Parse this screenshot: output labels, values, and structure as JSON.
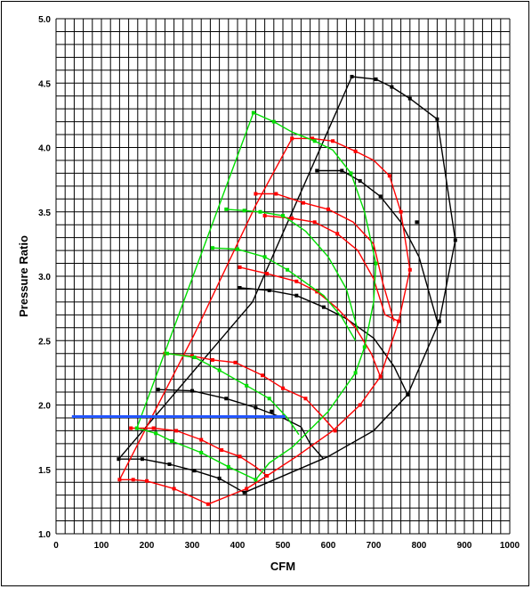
{
  "chart_data": {
    "type": "line",
    "title": "",
    "xlabel": "CFM",
    "ylabel": "Pressure Ratio",
    "xlim": [
      0,
      1000
    ],
    "ylim": [
      1.0,
      5.0
    ],
    "x_ticks": [
      0,
      100,
      200,
      300,
      400,
      500,
      600,
      700,
      800,
      900,
      1000
    ],
    "y_ticks": [
      "1.0",
      "1.5",
      "2.0",
      "2.5",
      "3.0",
      "3.5",
      "4.0",
      "4.5",
      "5.0"
    ],
    "x_minor_step": 20,
    "y_minor_step": 0.1,
    "grid": true,
    "legend": "none",
    "series": [
      {
        "color": "#000000",
        "polylines": [
          [
            [
              138,
              1.58
            ],
            [
              433,
              2.8
            ],
            [
              652,
              4.55
            ],
            [
              705,
              4.53
            ],
            [
              740,
              4.47
            ],
            [
              780,
              4.38
            ],
            [
              840,
              4.22
            ],
            [
              880,
              3.28
            ],
            [
              845,
              2.65
            ],
            [
              775,
              2.08
            ],
            [
              700,
              1.8
            ],
            [
              600,
              1.6
            ],
            [
              415,
              1.32
            ]
          ],
          [
            [
              138,
              1.58
            ],
            [
              190,
              1.58
            ],
            [
              250,
              1.54
            ],
            [
              305,
              1.49
            ],
            [
              360,
              1.43
            ],
            [
              415,
              1.32
            ]
          ],
          [
            [
              225,
              2.12
            ],
            [
              300,
              2.11
            ],
            [
              375,
              2.05
            ],
            [
              440,
              1.98
            ],
            [
              500,
              1.9
            ],
            [
              540,
              1.83
            ],
            [
              560,
              1.7
            ],
            [
              590,
              1.58
            ]
          ],
          [
            [
              405,
              2.91
            ],
            [
              470,
              2.89
            ],
            [
              530,
              2.85
            ],
            [
              590,
              2.76
            ],
            [
              640,
              2.67
            ],
            [
              700,
              2.52
            ],
            [
              745,
              2.3
            ],
            [
              775,
              2.08
            ]
          ],
          [
            [
              575,
              3.82
            ],
            [
              630,
              3.82
            ],
            [
              670,
              3.74
            ],
            [
              715,
              3.62
            ],
            [
              760,
              3.42
            ],
            [
              800,
              3.15
            ],
            [
              840,
              2.65
            ]
          ]
        ],
        "markers": [
          [
            138,
            1.58
          ],
          [
            190,
            1.58
          ],
          [
            250,
            1.54
          ],
          [
            305,
            1.49
          ],
          [
            360,
            1.43
          ],
          [
            415,
            1.32
          ],
          [
            225,
            2.12
          ],
          [
            300,
            2.11
          ],
          [
            375,
            2.05
          ],
          [
            440,
            1.98
          ],
          [
            475,
            1.95
          ],
          [
            405,
            2.91
          ],
          [
            470,
            2.89
          ],
          [
            530,
            2.85
          ],
          [
            590,
            2.76
          ],
          [
            575,
            3.82
          ],
          [
            630,
            3.82
          ],
          [
            670,
            3.74
          ],
          [
            715,
            3.62
          ],
          [
            652,
            4.55
          ],
          [
            705,
            4.53
          ],
          [
            740,
            4.47
          ],
          [
            780,
            4.38
          ],
          [
            840,
            4.22
          ],
          [
            795,
            3.42
          ],
          [
            880,
            3.28
          ],
          [
            845,
            2.65
          ],
          [
            775,
            2.08
          ]
        ]
      },
      {
        "color": "#ff0000",
        "polylines": [
          [
            [
              140,
              1.42
            ],
            [
              305,
              2.55
            ],
            [
              440,
              3.55
            ],
            [
              520,
              4.07
            ],
            [
              565,
              4.07
            ],
            [
              610,
              4.05
            ],
            [
              660,
              3.97
            ],
            [
              700,
              3.9
            ],
            [
              735,
              3.78
            ],
            [
              760,
              3.5
            ],
            [
              780,
              3.05
            ],
            [
              755,
              2.65
            ],
            [
              715,
              2.22
            ],
            [
              670,
              2.0
            ],
            [
              610,
              1.8
            ],
            [
              530,
              1.6
            ],
            [
              465,
              1.45
            ],
            [
              420,
              1.35
            ],
            [
              335,
              1.23
            ],
            [
              260,
              1.35
            ],
            [
              200,
              1.41
            ],
            [
              170,
              1.42
            ],
            [
              140,
              1.42
            ]
          ],
          [
            [
              165,
              1.82
            ],
            [
              215,
              1.82
            ],
            [
              265,
              1.8
            ],
            [
              320,
              1.73
            ],
            [
              365,
              1.65
            ],
            [
              405,
              1.6
            ],
            [
              440,
              1.52
            ],
            [
              465,
              1.45
            ]
          ],
          [
            [
              240,
              2.4
            ],
            [
              300,
              2.38
            ],
            [
              345,
              2.35
            ],
            [
              395,
              2.33
            ],
            [
              455,
              2.23
            ],
            [
              500,
              2.13
            ],
            [
              550,
              2.05
            ],
            [
              590,
              1.9
            ],
            [
              615,
              1.8
            ]
          ],
          [
            [
              405,
              3.07
            ],
            [
              465,
              3.02
            ],
            [
              530,
              2.96
            ],
            [
              575,
              2.88
            ],
            [
              620,
              2.75
            ],
            [
              660,
              2.6
            ],
            [
              695,
              2.4
            ],
            [
              715,
              2.22
            ]
          ],
          [
            [
              440,
              3.64
            ],
            [
              485,
              3.64
            ],
            [
              545,
              3.57
            ],
            [
              600,
              3.52
            ],
            [
              655,
              3.42
            ],
            [
              700,
              3.25
            ],
            [
              720,
              2.95
            ],
            [
              745,
              2.65
            ]
          ],
          [
            [
              460,
              3.47
            ],
            [
              520,
              3.45
            ],
            [
              570,
              3.42
            ],
            [
              620,
              3.33
            ],
            [
              665,
              3.2
            ],
            [
              700,
              2.98
            ],
            [
              725,
              2.7
            ],
            [
              755,
              2.65
            ]
          ]
        ],
        "markers": [
          [
            140,
            1.42
          ],
          [
            170,
            1.42
          ],
          [
            200,
            1.41
          ],
          [
            260,
            1.35
          ],
          [
            335,
            1.23
          ],
          [
            420,
            1.35
          ],
          [
            465,
            1.45
          ],
          [
            165,
            1.82
          ],
          [
            215,
            1.82
          ],
          [
            265,
            1.8
          ],
          [
            320,
            1.73
          ],
          [
            365,
            1.65
          ],
          [
            405,
            1.6
          ],
          [
            240,
            2.4
          ],
          [
            300,
            2.38
          ],
          [
            345,
            2.35
          ],
          [
            395,
            2.33
          ],
          [
            455,
            2.23
          ],
          [
            500,
            2.13
          ],
          [
            550,
            2.05
          ],
          [
            615,
            1.8
          ],
          [
            405,
            3.07
          ],
          [
            465,
            3.02
          ],
          [
            530,
            2.96
          ],
          [
            575,
            2.88
          ],
          [
            440,
            3.64
          ],
          [
            485,
            3.64
          ],
          [
            545,
            3.57
          ],
          [
            600,
            3.52
          ],
          [
            460,
            3.47
          ],
          [
            520,
            3.45
          ],
          [
            570,
            3.42
          ],
          [
            620,
            3.33
          ],
          [
            520,
            4.07
          ],
          [
            565,
            4.07
          ],
          [
            610,
            4.05
          ],
          [
            660,
            3.97
          ],
          [
            735,
            3.78
          ],
          [
            760,
            3.5
          ],
          [
            780,
            3.05
          ],
          [
            755,
            2.65
          ],
          [
            715,
            2.22
          ],
          [
            670,
            2.0
          ]
        ]
      },
      {
        "color": "#00dd00",
        "polylines": [
          [
            [
              178,
              1.82
            ],
            [
              435,
              4.27
            ],
            [
              480,
              4.2
            ],
            [
              520,
              4.12
            ],
            [
              570,
              4.05
            ],
            [
              610,
              3.98
            ],
            [
              650,
              3.8
            ],
            [
              680,
              3.5
            ],
            [
              705,
              3.1
            ],
            [
              700,
              2.8
            ],
            [
              680,
              2.45
            ],
            [
              660,
              2.25
            ],
            [
              600,
              1.95
            ],
            [
              520,
              1.67
            ],
            [
              470,
              1.55
            ],
            [
              440,
              1.42
            ],
            [
              380,
              1.52
            ],
            [
              320,
              1.63
            ],
            [
              255,
              1.72
            ],
            [
              220,
              1.78
            ],
            [
              178,
              1.82
            ]
          ],
          [
            [
              245,
              2.4
            ],
            [
              305,
              2.37
            ],
            [
              360,
              2.27
            ],
            [
              420,
              2.15
            ],
            [
              470,
              2.05
            ],
            [
              510,
              1.9
            ],
            [
              535,
              1.77
            ]
          ],
          [
            [
              345,
              3.22
            ],
            [
              400,
              3.21
            ],
            [
              460,
              3.15
            ],
            [
              510,
              3.05
            ],
            [
              550,
              2.95
            ],
            [
              590,
              2.85
            ],
            [
              630,
              2.68
            ],
            [
              660,
              2.5
            ]
          ],
          [
            [
              375,
              3.52
            ],
            [
              415,
              3.51
            ],
            [
              450,
              3.5
            ],
            [
              500,
              3.47
            ],
            [
              550,
              3.35
            ],
            [
              600,
              3.15
            ],
            [
              640,
              2.9
            ],
            [
              665,
              2.58
            ]
          ]
        ],
        "markers": [
          [
            178,
            1.82
          ],
          [
            220,
            1.78
          ],
          [
            255,
            1.72
          ],
          [
            320,
            1.63
          ],
          [
            380,
            1.52
          ],
          [
            440,
            1.42
          ],
          [
            245,
            2.4
          ],
          [
            305,
            2.37
          ],
          [
            360,
            2.27
          ],
          [
            420,
            2.15
          ],
          [
            470,
            2.05
          ],
          [
            345,
            3.22
          ],
          [
            400,
            3.21
          ],
          [
            460,
            3.15
          ],
          [
            510,
            3.05
          ],
          [
            375,
            3.52
          ],
          [
            415,
            3.51
          ],
          [
            450,
            3.5
          ],
          [
            500,
            3.47
          ],
          [
            435,
            4.27
          ],
          [
            480,
            4.2
          ],
          [
            570,
            4.05
          ],
          [
            650,
            3.8
          ],
          [
            705,
            3.1
          ],
          [
            680,
            2.45
          ],
          [
            660,
            2.25
          ]
        ]
      },
      {
        "color": "#2255ff",
        "polylines": [
          [
            [
              35,
              1.91
            ],
            [
              505,
              1.91
            ]
          ]
        ],
        "markers": []
      }
    ]
  }
}
